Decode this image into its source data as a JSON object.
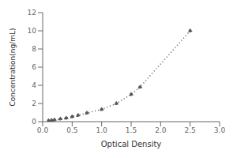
{
  "chart_data": {
    "type": "line",
    "x": [
      0.1,
      0.15,
      0.2,
      0.3,
      0.4,
      0.5,
      0.6,
      0.75,
      1.0,
      1.25,
      1.5,
      1.65,
      2.5
    ],
    "values": [
      0.1,
      0.15,
      0.2,
      0.3,
      0.4,
      0.55,
      0.7,
      0.95,
      1.35,
      2.0,
      3.0,
      3.8,
      10.0
    ],
    "xlabel": "Optical Density",
    "ylabel": "Concentration(ng/mL)",
    "xlim": [
      0,
      3
    ],
    "ylim": [
      0,
      12
    ],
    "xticks": [
      {
        "value": 0,
        "label": "0.0"
      },
      0.5,
      {
        "value": 1,
        "label": "1.0"
      },
      1.5,
      {
        "value": 2,
        "label": "2.0"
      },
      2.5,
      {
        "value": 3,
        "label": "3.0"
      }
    ],
    "yticks": [
      0,
      2,
      4,
      6,
      8,
      10,
      12
    ],
    "color": "#555555",
    "marker": "circle",
    "line_style": "dotted",
    "grid": false
  }
}
